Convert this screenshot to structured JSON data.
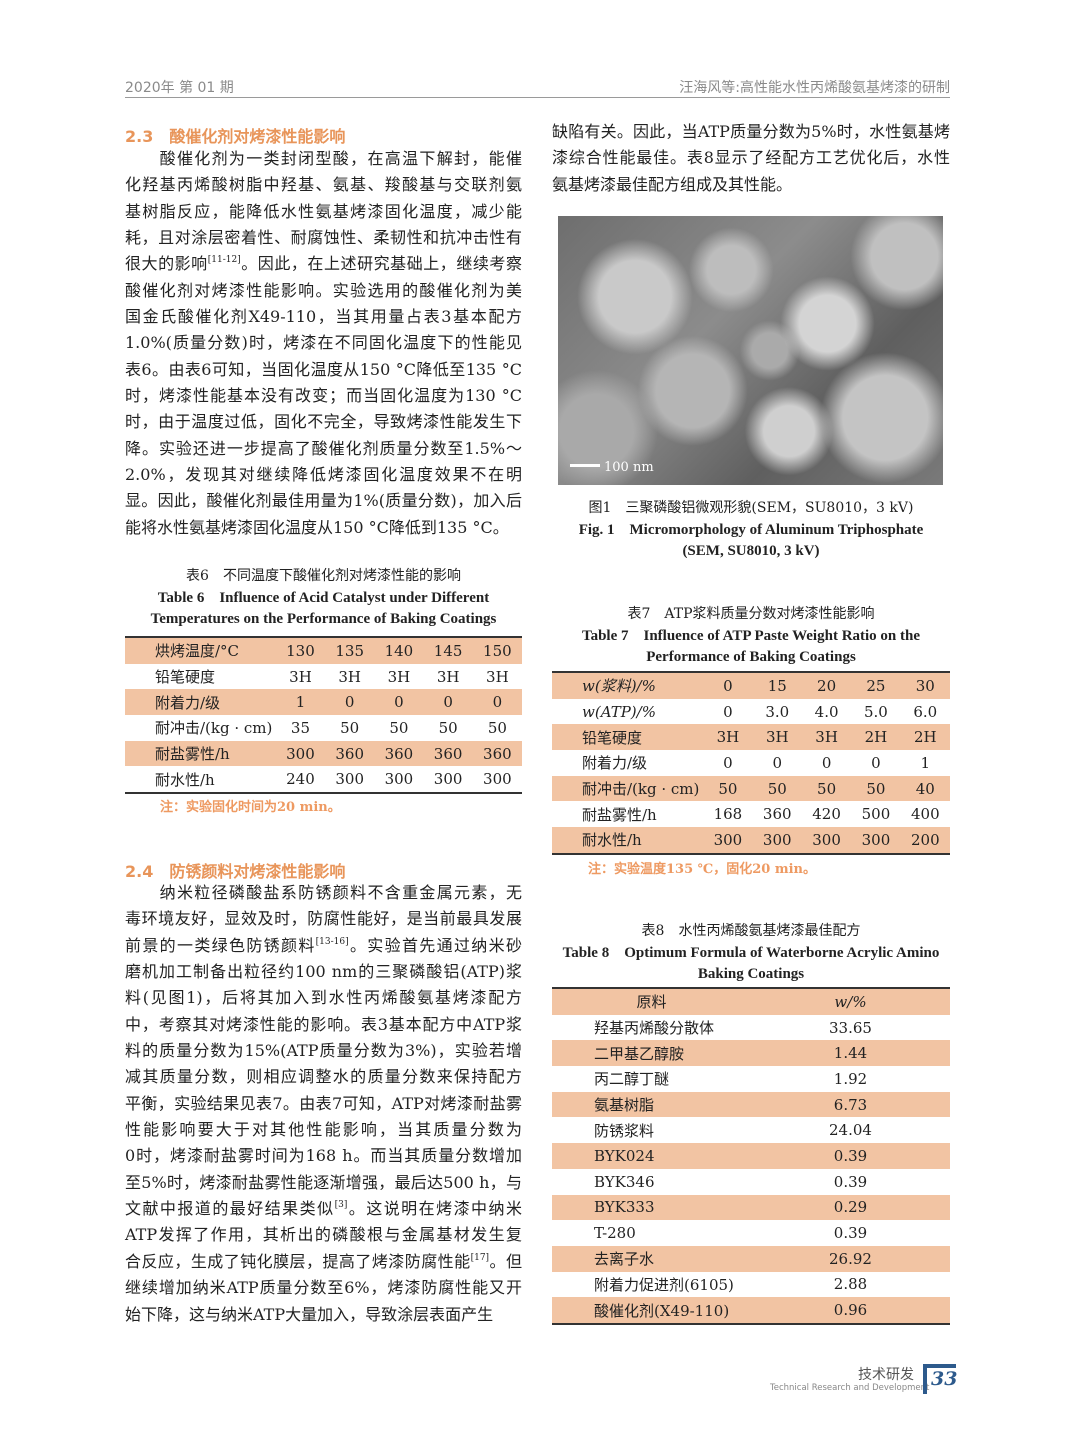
{
  "header": {
    "issue": "2020年  第 01 期",
    "running_title": "汪海风等:高性能水性丙烯酸氨基烤漆的研制"
  },
  "section_2_3": {
    "number": "2.3",
    "title": "酸催化剂对烤漆性能影响",
    "lines": [
      {
        "t": "　　酸催化剂为一类封闭型酸，在高温下解封，能催"
      },
      {
        "t": "化羟基丙烯酸树脂中羟基、氨基、羧酸基与交联剂氨"
      },
      {
        "t": "基树脂反应，能降低水性氨基烤漆固化温度，减少能"
      },
      {
        "t": "耗，且对涂层密着性、耐腐蚀性、柔韧性和抗冲击性有"
      },
      {
        "t": "很大的影响",
        "sup": "[11-12]",
        "t2": "。因此，在上述研究基础上，继续考察"
      },
      {
        "t": "酸催化剂对烤漆性能影响。实验选用的酸催化剂为美"
      },
      {
        "t": "国金氏酸催化剂X49-110，当其用量占表3基本配方"
      },
      {
        "t": "1.0%(质量分数)时，烤漆在不同固化温度下的性能见"
      },
      {
        "t": "表6。由表6可知，当固化温度从150 °C降低至135 °C"
      },
      {
        "t": "时，烤漆性能基本没有改变；而当固化温度为130 °C"
      },
      {
        "t": "时，由于温度过低，固化不完全，导致烤漆性能发生下"
      },
      {
        "t": "降。实验还进一步提高了酸催化剂质量分数至1.5%～"
      },
      {
        "t": "2.0%，发现其对继续降低烤漆固化温度效果不在明"
      },
      {
        "t": "显。因此，酸催化剂最佳用量为1%(质量分数)，加入后"
      },
      {
        "t": "能将水性氨基烤漆固化温度从150 °C降低到135 °C。"
      }
    ]
  },
  "table6": {
    "caption_cn": "表6　不同温度下酸催化剂对烤漆性能的影响",
    "caption_en_1": "Table 6　Influence of Acid Catalyst under Different",
    "caption_en_2": "Temperatures on the Performance of Baking Coatings",
    "rows": [
      [
        "烘烤温度/°C",
        "130",
        "135",
        "140",
        "145",
        "150"
      ],
      [
        "铅笔硬度",
        "3H",
        "3H",
        "3H",
        "3H",
        "3H"
      ],
      [
        "附着力/级",
        "1",
        "0",
        "0",
        "0",
        "0"
      ],
      [
        "耐冲击/(kg · cm)",
        "35",
        "50",
        "50",
        "50",
        "50"
      ],
      [
        "耐盐雾性/h",
        "300",
        "360",
        "360",
        "360",
        "360"
      ],
      [
        "耐水性/h",
        "240",
        "300",
        "300",
        "300",
        "300"
      ]
    ],
    "note": "注：实验固化时间为20 min。"
  },
  "section_2_4": {
    "number": "2.4",
    "title": "防锈颜料对烤漆性能影响",
    "lines": [
      {
        "t": "　　纳米粒径磷酸盐系防锈颜料不含重金属元素，无"
      },
      {
        "t": "毒环境友好，显效及时，防腐性能好，是当前最具发展"
      },
      {
        "t": "前景的一类绿色防锈颜料",
        "sup": "[13-16]",
        "t2": "。实验首先通过纳米砂"
      },
      {
        "t": "磨机加工制备出粒径约100 nm的三聚磷酸铝(ATP)浆"
      },
      {
        "t": "料(见图1)，后将其加入到水性丙烯酸氨基烤漆配方"
      },
      {
        "t": "中，考察其对烤漆性能的影响。表3基本配方中ATP浆"
      },
      {
        "t": "料的质量分数为15%(ATP质量分数为3%)，实验若增"
      },
      {
        "t": "减其质量分数，则相应调整水的质量分数来保持配方"
      },
      {
        "t": "平衡，实验结果见表7。由表7可知，ATP对烤漆耐盐雾"
      },
      {
        "t": "性能影响要大于对其他性能影响，当其质量分数为"
      },
      {
        "t": "0时，烤漆耐盐雾时间为168 h。而当其质量分数增加"
      },
      {
        "t": "至5%时，烤漆耐盐雾性能逐渐增强，最后达500 h，与"
      },
      {
        "t": "文献中报道的最好结果类似",
        "sup": "[3]",
        "t2": "。这说明在烤漆中纳米"
      },
      {
        "t": "ATP发挥了作用，其析出的磷酸根与金属基材发生复"
      },
      {
        "t": "合反应，生成了钝化膜层，提高了烤漆防腐性能",
        "sup": "[17]",
        "t2": "。但"
      },
      {
        "t": "继续增加纳米ATP质量分数至6%，烤漆防腐性能又开"
      },
      {
        "t": "始下降，这与纳米ATP大量加入，导致涂层表面产生"
      }
    ]
  },
  "right_para": {
    "lines": [
      {
        "t": "缺陷有关。因此，当ATP质量分数为5%时，水性氨基烤"
      },
      {
        "t": "漆综合性能最佳。表8显示了经配方工艺优化后，水性"
      },
      {
        "t": "氨基烤漆最佳配方组成及其性能。"
      }
    ]
  },
  "figure1": {
    "scale_label": "100 nm",
    "caption_cn": "图1　三聚磷酸铝微观形貌(SEM，SU8010，3 kV)",
    "caption_en_1": "Fig. 1　Micromorphology of Aluminum Triphosphate",
    "caption_en_2": "(SEM, SU8010, 3 kV)"
  },
  "table7": {
    "caption_cn": "表7　ATP浆料质量分数对烤漆性能影响",
    "caption_en_1": "Table 7　Influence of ATP Paste Weight Ratio on the",
    "caption_en_2": "Performance of Baking Coatings",
    "rows": [
      [
        "w(浆料)/%",
        "0",
        "15",
        "20",
        "25",
        "30"
      ],
      [
        "w(ATP)/%",
        "0",
        "3.0",
        "4.0",
        "5.0",
        "6.0"
      ],
      [
        "铅笔硬度",
        "3H",
        "3H",
        "3H",
        "2H",
        "2H"
      ],
      [
        "附着力/级",
        "0",
        "0",
        "0",
        "0",
        "1"
      ],
      [
        "耐冲击/(kg · cm)",
        "50",
        "50",
        "50",
        "50",
        "40"
      ],
      [
        "耐盐雾性/h",
        "168",
        "360",
        "420",
        "500",
        "400"
      ],
      [
        "耐水性/h",
        "300",
        "300",
        "300",
        "300",
        "200"
      ]
    ],
    "note": "注：实验温度135 ℃，固化20 min。"
  },
  "table8": {
    "caption_cn": "表8　水性丙烯酸氨基烤漆最佳配方",
    "caption_en_1": "Table 8　Optimum Formula of Waterborne Acrylic Amino",
    "caption_en_2": "Baking Coatings",
    "header": [
      "原料",
      "w/%"
    ],
    "rows": [
      [
        "羟基丙烯酸分散体",
        "33.65"
      ],
      [
        "二甲基乙醇胺",
        "1.44"
      ],
      [
        "丙二醇丁醚",
        "1.92"
      ],
      [
        "氨基树脂",
        "6.73"
      ],
      [
        "防锈浆料",
        "24.04"
      ],
      [
        "BYK024",
        "0.39"
      ],
      [
        "BYK346",
        "0.39"
      ],
      [
        "BYK333",
        "0.29"
      ],
      [
        "T-280",
        "0.39"
      ],
      [
        "去离子水",
        "26.92"
      ],
      [
        "附着力促进剂(6105)",
        "2.88"
      ],
      [
        "酸催化剂(X49-110)",
        "0.96"
      ]
    ]
  },
  "footer": {
    "section_cn": "技术研发",
    "section_en": "Technical Research and Development",
    "page_number": "33"
  },
  "colors": {
    "accent": "#e8955a",
    "row_shade": "#f2c4a3",
    "page_box": "#2d5a8c"
  }
}
